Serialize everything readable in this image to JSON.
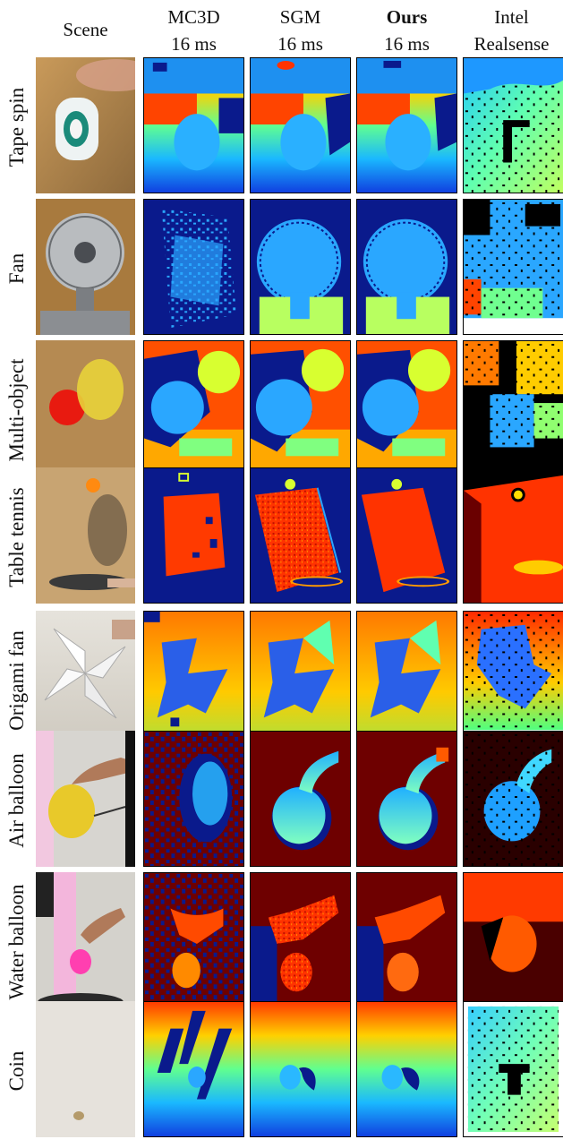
{
  "header": {
    "scene": "Scene",
    "mc3d": "MC3D",
    "mc3d_time": "16 ms",
    "sgm": "SGM",
    "sgm_time": "16 ms",
    "ours": "Ours",
    "ours_time": "16 ms",
    "intel_line1": "Intel",
    "intel_line2": "Realsense"
  },
  "rows": [
    {
      "label": "Tape spin"
    },
    {
      "label": "Fan"
    },
    {
      "label": "Multi-object"
    },
    {
      "label": "Table tennis"
    },
    {
      "label": "Origami fan"
    },
    {
      "label": "Air balloon"
    },
    {
      "label": "Water balloon"
    },
    {
      "label": "Coin"
    }
  ],
  "colors": {
    "depth_far": "#0a1a8c",
    "depth_mid": "#2aa7ff",
    "depth_near": "#c8ff40",
    "depth_close": "#ff5a00",
    "depth_closest": "#7a0000"
  }
}
